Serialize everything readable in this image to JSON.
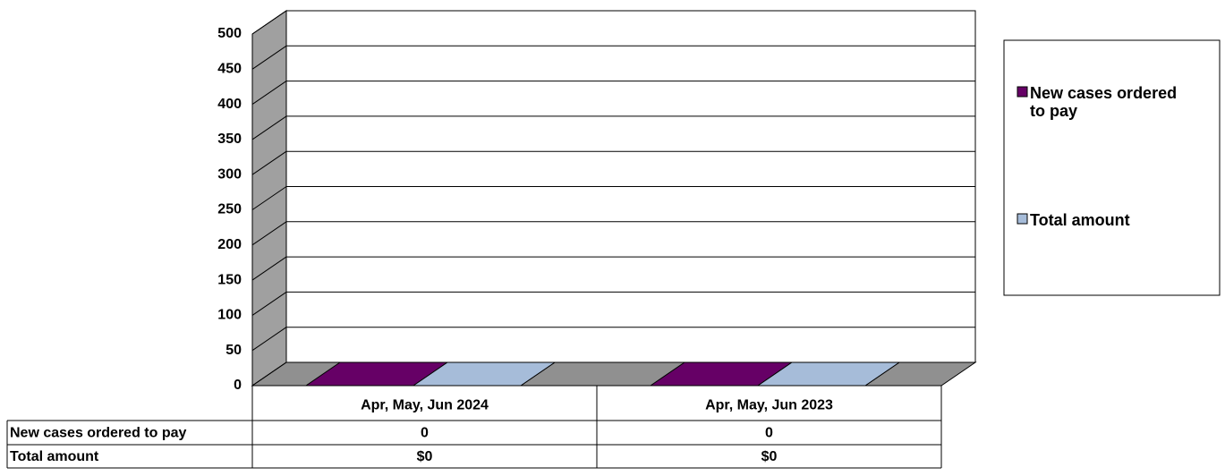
{
  "chart_data": {
    "type": "bar",
    "categories": [
      "Apr, May, Jun 2024",
      "Apr, May, Jun 2023"
    ],
    "series": [
      {
        "name": "New cases ordered to pay",
        "color": "#660066",
        "values": [
          0,
          0
        ]
      },
      {
        "name": "Total amount",
        "color": "#a6bcd9",
        "values": [
          0,
          0
        ],
        "value_labels": [
          "$0",
          "$0"
        ]
      }
    ],
    "ylim": [
      0,
      500
    ],
    "yticks": [
      0,
      50,
      100,
      150,
      200,
      250,
      300,
      350,
      400,
      450,
      500
    ],
    "grid": true,
    "legend": "right"
  }
}
